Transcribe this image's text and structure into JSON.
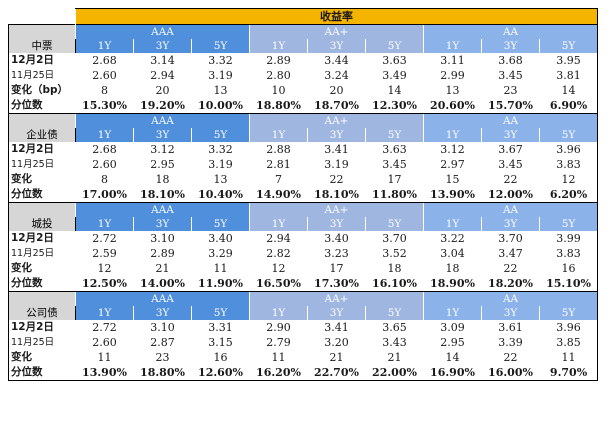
{
  "title": "收益率",
  "ratings": [
    "AAA",
    "AA+",
    "AA"
  ],
  "tenors": [
    "1Y",
    "3Y",
    "5Y"
  ],
  "sections": [
    {
      "name": "中票",
      "rows": [
        {
          "label": "12月2日",
          "values": [
            "2.68",
            "3.14",
            "3.32",
            "2.89",
            "3.44",
            "3.63",
            "3.11",
            "3.68",
            "3.95"
          ]
        },
        {
          "label": "11月25日",
          "values": [
            "2.60",
            "2.94",
            "3.19",
            "2.80",
            "3.24",
            "3.49",
            "2.99",
            "3.45",
            "3.81"
          ]
        },
        {
          "label": "变化（bp）",
          "values": [
            "8",
            "20",
            "13",
            "10",
            "20",
            "14",
            "13",
            "23",
            "14"
          ]
        },
        {
          "label": "分位数",
          "values": [
            "15.30%",
            "19.20%",
            "10.00%",
            "18.80%",
            "18.70%",
            "12.30%",
            "20.60%",
            "15.70%",
            "6.90%"
          ]
        }
      ]
    },
    {
      "name": "企业债",
      "rows": [
        {
          "label": "12月2日",
          "values": [
            "2.68",
            "3.12",
            "3.32",
            "2.88",
            "3.41",
            "3.63",
            "3.12",
            "3.67",
            "3.96"
          ]
        },
        {
          "label": "11月25日",
          "values": [
            "2.60",
            "2.95",
            "3.19",
            "2.81",
            "3.19",
            "3.45",
            "2.97",
            "3.45",
            "3.83"
          ]
        },
        {
          "label": "变化",
          "values": [
            "8",
            "18",
            "13",
            "7",
            "22",
            "17",
            "15",
            "22",
            "12"
          ]
        },
        {
          "label": "分位数",
          "values": [
            "17.00%",
            "18.10%",
            "10.40%",
            "14.90%",
            "18.10%",
            "11.80%",
            "13.90%",
            "12.00%",
            "6.20%"
          ]
        }
      ]
    },
    {
      "name": "城投",
      "rows": [
        {
          "label": "12月2日",
          "values": [
            "2.72",
            "3.10",
            "3.40",
            "2.94",
            "3.40",
            "3.70",
            "3.22",
            "3.70",
            "3.99"
          ]
        },
        {
          "label": "11月25日",
          "values": [
            "2.59",
            "2.89",
            "3.29",
            "2.82",
            "3.23",
            "3.52",
            "3.04",
            "3.47",
            "3.83"
          ]
        },
        {
          "label": "变化",
          "values": [
            "12",
            "21",
            "11",
            "12",
            "17",
            "18",
            "18",
            "22",
            "16"
          ]
        },
        {
          "label": "分位数",
          "values": [
            "12.50%",
            "14.00%",
            "11.90%",
            "16.50%",
            "17.30%",
            "16.10%",
            "18.90%",
            "18.20%",
            "15.10%"
          ]
        }
      ]
    },
    {
      "name": "公司债",
      "rows": [
        {
          "label": "12月2日",
          "values": [
            "2.72",
            "3.10",
            "3.31",
            "2.90",
            "3.41",
            "3.65",
            "3.09",
            "3.61",
            "3.96"
          ]
        },
        {
          "label": "11月25日",
          "values": [
            "2.60",
            "2.87",
            "3.15",
            "2.79",
            "3.20",
            "3.43",
            "2.95",
            "3.39",
            "3.85"
          ]
        },
        {
          "label": "变化",
          "values": [
            "11",
            "23",
            "16",
            "11",
            "21",
            "21",
            "14",
            "22",
            "11"
          ]
        },
        {
          "label": "分位数",
          "values": [
            "13.90%",
            "18.80%",
            "12.60%",
            "16.20%",
            "22.70%",
            "22.00%",
            "16.90%",
            "16.00%",
            "9.70%"
          ]
        }
      ]
    }
  ]
}
